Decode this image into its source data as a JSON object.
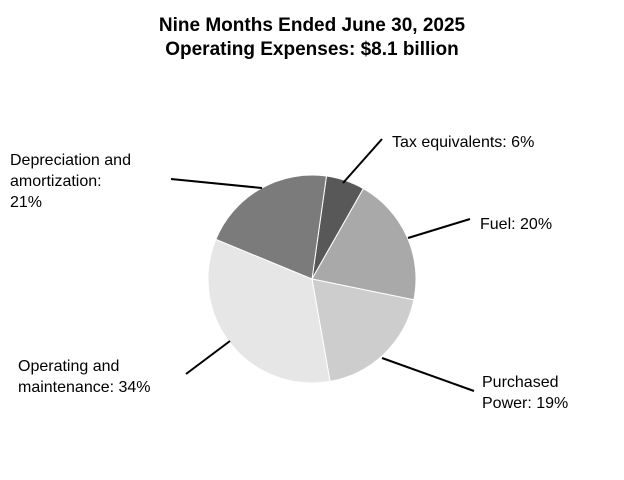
{
  "chart_data": {
    "type": "pie",
    "title": "Nine Months Ended June 30, 2025",
    "subtitle": "Operating Expenses: $8.1 billion",
    "slices": [
      {
        "label": "Tax equivalents: 6%",
        "value": 6,
        "color": "#585858"
      },
      {
        "label": "Fuel: 20%",
        "value": 20,
        "color": "#a9a9a9"
      },
      {
        "label": "Purchased\nPower: 19%",
        "value": 19,
        "color": "#cdcdcd"
      },
      {
        "label": "Operating and\nmaintenance: 34%",
        "value": 34,
        "color": "#e6e6e6"
      },
      {
        "label": "Depreciation and\namortization:\n21%",
        "value": 21,
        "color": "#7b7b7b"
      }
    ]
  }
}
